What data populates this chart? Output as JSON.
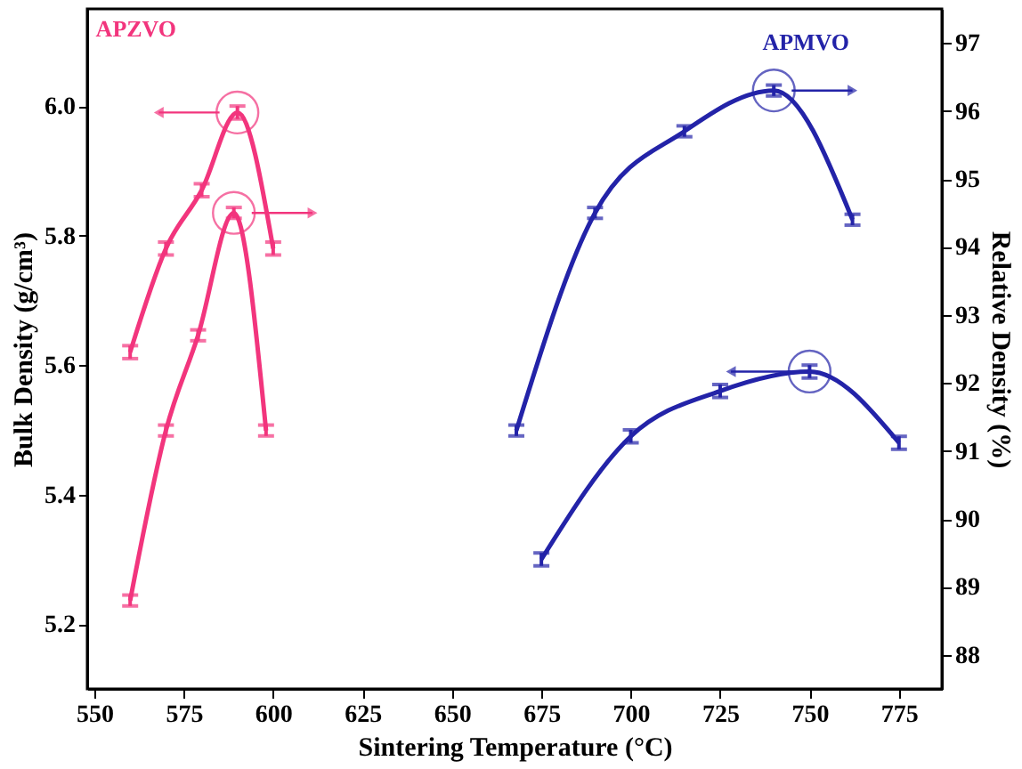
{
  "chart_data": {
    "type": "line",
    "xlabel": "Sintering Temperature (°C)",
    "ylabel": "Bulk Density (g/cm³)",
    "y2label": "Relative Density (%)",
    "annotations": [
      "APZVO",
      "APMVO"
    ],
    "series": [
      {
        "color": "#f2357d",
        "axis": "y",
        "x": [
          560,
          570,
          580,
          590,
          600
        ],
        "values": [
          5.62,
          5.78,
          5.87,
          5.99,
          5.78
        ],
        "errors": [
          0.01,
          0.01,
          0.01,
          0.01,
          0.01
        ]
      },
      {
        "color": "#f2357d",
        "axis": "y2",
        "x": [
          560,
          570,
          579,
          589,
          598
        ],
        "values": [
          88.8,
          91.3,
          92.7,
          94.5,
          91.3
        ],
        "errors": [
          0.08,
          0.08,
          0.08,
          0.08,
          0.08
        ]
      },
      {
        "color": "#2323a8",
        "axis": "y",
        "x": [
          675,
          700,
          725,
          750,
          775
        ],
        "values": [
          5.3,
          5.49,
          5.56,
          5.59,
          5.48
        ],
        "errors": [
          0.01,
          0.01,
          0.01,
          0.01,
          0.01
        ]
      },
      {
        "color": "#2323a8",
        "axis": "y2",
        "x": [
          668,
          690,
          715,
          740,
          762
        ],
        "values": [
          91.3,
          94.5,
          95.7,
          96.3,
          94.4
        ],
        "errors": [
          0.08,
          0.08,
          0.08,
          0.08,
          0.08
        ]
      }
    ],
    "xlim": [
      548,
      787
    ],
    "xticks": [
      550,
      575,
      600,
      625,
      650,
      675,
      700,
      725,
      750,
      775
    ],
    "ylim": [
      5.1,
      6.15
    ],
    "yticks": [
      5.2,
      5.4,
      5.6,
      5.8,
      {
        "value": 6.0,
        "label": "6.0"
      }
    ],
    "y2lim": [
      87.5,
      97.5
    ],
    "y2ticks": [
      88,
      89,
      90,
      91,
      92,
      93,
      94,
      95,
      96,
      97
    ],
    "grid": false,
    "legend": false,
    "marker": "none",
    "line_style": "solid"
  }
}
